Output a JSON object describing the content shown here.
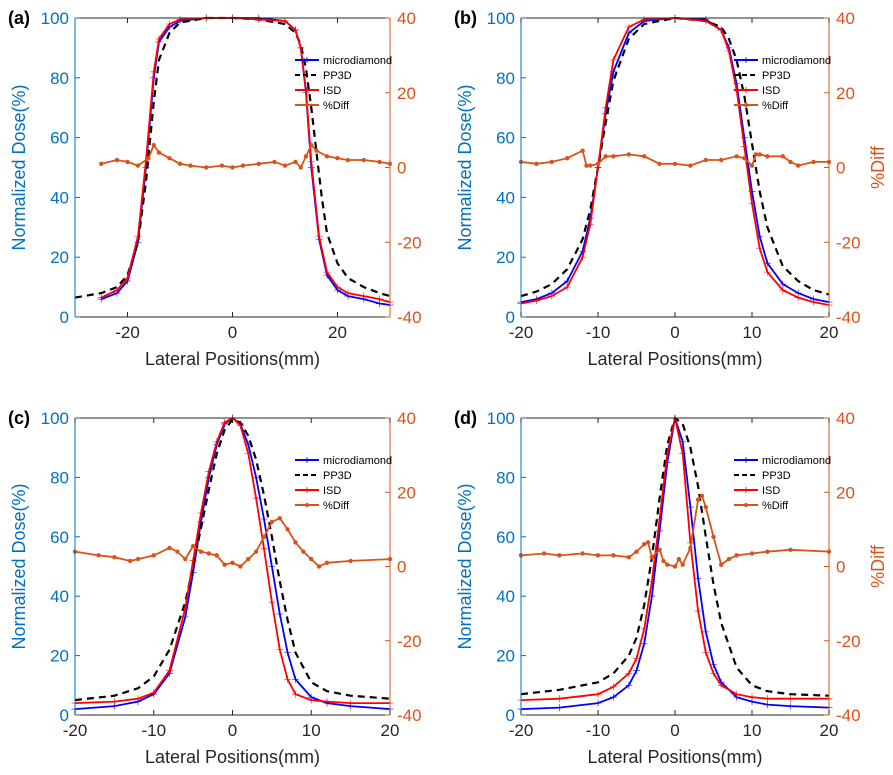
{
  "colors": {
    "left_axis": "#0072BD",
    "right_axis": "#D95319",
    "microdiamond": "#0000FF",
    "PP3D": "#000000",
    "ISD": "#FF0000",
    "diff": "#D95319"
  },
  "chart_data": [
    {
      "type": "line",
      "panel_label": "(a)",
      "xlabel": "Lateral Positions(mm)",
      "ylabel": "Normalized Dose(%)",
      "y2label": "",
      "xlim": [
        -30,
        30
      ],
      "xticks": [
        -20,
        0,
        20
      ],
      "ylim": [
        0,
        100
      ],
      "yticks": [
        0,
        20,
        40,
        60,
        80,
        100
      ],
      "y2lim": [
        -40,
        40
      ],
      "y2ticks": [
        -40,
        -20,
        0,
        20,
        40
      ],
      "legend": {
        "position": "top-right",
        "labels": [
          "microdiamond",
          "PP3D",
          "ISD",
          "%Diff"
        ]
      },
      "series": [
        {
          "name": "microdiamond",
          "axis": "left",
          "style": "solid-marker",
          "x": [
            -25,
            -22,
            -20,
            -18,
            -16.5,
            -15,
            -14,
            -12,
            -10,
            -5,
            0,
            5,
            10,
            12,
            13,
            14,
            15,
            16.5,
            18,
            20,
            22,
            25,
            28,
            30
          ],
          "y": [
            6,
            8,
            12,
            25,
            50,
            80,
            92,
            97,
            99,
            100,
            100,
            100,
            99,
            96,
            90,
            75,
            50,
            26,
            14,
            9,
            7,
            6,
            4.5,
            4
          ]
        },
        {
          "name": "PP3D",
          "axis": "left",
          "style": "dashed",
          "x": [
            -30,
            -25,
            -22,
            -20,
            -18,
            -16.5,
            -15,
            -14,
            -12,
            -10,
            -5,
            0,
            5,
            10,
            12,
            13,
            14,
            15,
            16,
            17,
            18,
            20,
            22,
            25,
            28,
            30
          ],
          "y": [
            6.5,
            8,
            10,
            14,
            25,
            45,
            72,
            86,
            95,
            98.5,
            100,
            100,
            99.5,
            98,
            95,
            91,
            83,
            70,
            55,
            40,
            28,
            18,
            13,
            10,
            8,
            7
          ]
        },
        {
          "name": "ISD",
          "axis": "left",
          "style": "solid-marker",
          "x": [
            -25,
            -22,
            -20,
            -18,
            -16.5,
            -15,
            -14,
            -12,
            -10,
            -5,
            0,
            5,
            10,
            12,
            13,
            14,
            15,
            16.5,
            18,
            20,
            22,
            25,
            28,
            30
          ],
          "y": [
            6.5,
            9,
            13,
            27,
            52,
            82,
            93,
            98,
            99.5,
            100,
            100,
            99.5,
            99,
            96,
            90,
            76,
            52,
            27,
            15,
            10,
            8,
            7,
            6,
            5
          ]
        },
        {
          "name": "%Diff",
          "axis": "right",
          "style": "dot-line",
          "x": [
            -25,
            -22,
            -20,
            -18,
            -16,
            -15,
            -14,
            -12,
            -10,
            -8,
            -5,
            -2,
            0,
            2,
            5,
            8,
            10,
            12,
            13,
            14,
            15,
            16,
            18,
            20,
            22,
            25,
            28,
            30
          ],
          "y": [
            1,
            2,
            1.5,
            0.5,
            2.5,
            6,
            4,
            2.5,
            1,
            0.5,
            0,
            0.5,
            0,
            0.5,
            1,
            1.5,
            0.5,
            1.5,
            0,
            3,
            6,
            4.5,
            3,
            2.5,
            2,
            2,
            1.5,
            1
          ]
        }
      ]
    },
    {
      "type": "line",
      "panel_label": "(b)",
      "xlabel": "Lateral Positions(mm)",
      "ylabel": "Normalized Dose(%)",
      "y2label": "%Diff",
      "xlim": [
        -20,
        20
      ],
      "xticks": [
        -20,
        -10,
        0,
        10,
        20
      ],
      "ylim": [
        0,
        100
      ],
      "yticks": [
        0,
        20,
        40,
        60,
        80,
        100
      ],
      "y2lim": [
        -40,
        40
      ],
      "y2ticks": [
        -40,
        -20,
        0,
        20,
        40
      ],
      "legend": {
        "position": "top-right",
        "labels": [
          "microdiamond",
          "PP3D",
          "ISD",
          "%Diff"
        ]
      },
      "series": [
        {
          "name": "microdiamond",
          "axis": "left",
          "style": "solid-marker",
          "x": [
            -20,
            -18,
            -16,
            -14,
            -12,
            -11,
            -10,
            -9,
            -8,
            -6,
            -4,
            0,
            4,
            6,
            7,
            8,
            9,
            10,
            11,
            12,
            14,
            16,
            18,
            20
          ],
          "y": [
            5,
            6,
            8,
            12,
            22,
            33,
            50,
            68,
            82,
            95,
            99,
            100,
            99.5,
            96,
            90,
            78,
            60,
            42,
            27,
            18,
            11,
            8,
            6,
            5
          ]
        },
        {
          "name": "PP3D",
          "axis": "left",
          "style": "dashed",
          "x": [
            -20,
            -18,
            -16,
            -14,
            -12,
            -11,
            -10,
            -9,
            -8,
            -6,
            -4,
            0,
            4,
            6,
            7,
            8,
            9,
            10,
            11,
            12,
            14,
            16,
            18,
            20
          ],
          "y": [
            7,
            8.5,
            11,
            16,
            26,
            36,
            50,
            65,
            79,
            93,
            98,
            100,
            99,
            97,
            93,
            86,
            74,
            58,
            42,
            30,
            17,
            12,
            9,
            7.5
          ]
        },
        {
          "name": "ISD",
          "axis": "left",
          "style": "solid-marker",
          "x": [
            -20,
            -18,
            -16,
            -14,
            -12,
            -11,
            -10,
            -9,
            -8,
            -6,
            -4,
            0,
            4,
            6,
            7,
            8,
            9,
            10,
            11,
            12,
            14,
            16,
            18,
            20
          ],
          "y": [
            4.5,
            5.5,
            7,
            10,
            20,
            31,
            50,
            70,
            86,
            97,
            99.5,
            100,
            99,
            96,
            89,
            76,
            57,
            38,
            23,
            15,
            9,
            6.5,
            5,
            4
          ]
        },
        {
          "name": "%Diff",
          "axis": "right",
          "style": "dot-line",
          "x": [
            -20,
            -18,
            -16,
            -14,
            -12,
            -11.5,
            -11,
            -10,
            -9,
            -8,
            -6,
            -4,
            -2,
            0,
            2,
            4,
            6,
            8,
            9,
            10,
            10.5,
            11,
            12,
            14,
            15,
            16,
            18,
            20
          ],
          "y": [
            1.5,
            1,
            1.5,
            2.5,
            4.5,
            0.5,
            0.5,
            1,
            3,
            3,
            3.5,
            3,
            1,
            1,
            0.5,
            2,
            2,
            3,
            2.5,
            0.5,
            3.5,
            3.5,
            3,
            3,
            1.5,
            0.5,
            1.5,
            1.5
          ]
        }
      ]
    },
    {
      "type": "line",
      "panel_label": "(c)",
      "xlabel": "Lateral Positions(mm)",
      "ylabel": "Normalized Dose(%)",
      "y2label": "",
      "xlim": [
        -20,
        20
      ],
      "xticks": [
        -20,
        -10,
        0,
        10,
        20
      ],
      "ylim": [
        0,
        100
      ],
      "yticks": [
        0,
        20,
        40,
        60,
        80,
        100
      ],
      "y2lim": [
        -40,
        40
      ],
      "y2ticks": [
        -40,
        -20,
        0,
        20,
        40
      ],
      "legend": {
        "position": "top-right",
        "labels": [
          "microdiamond",
          "PP3D",
          "ISD",
          "%Diff"
        ]
      },
      "series": [
        {
          "name": "microdiamond",
          "axis": "left",
          "style": "solid-marker",
          "x": [
            -20,
            -15,
            -12,
            -10,
            -8,
            -6,
            -5,
            -4,
            -3,
            -2,
            -1,
            0,
            1,
            2,
            3,
            4,
            5,
            6,
            7,
            8,
            10,
            12,
            15,
            20
          ],
          "y": [
            2,
            3,
            4.5,
            7,
            14,
            33,
            48,
            65,
            80,
            91,
            98,
            100,
            98,
            91,
            80,
            66,
            50,
            34,
            21,
            12,
            6,
            4,
            3,
            2
          ]
        },
        {
          "name": "PP3D",
          "axis": "left",
          "style": "dashed",
          "x": [
            -20,
            -15,
            -12,
            -10,
            -8,
            -6,
            -5,
            -4,
            -3,
            -2,
            -1,
            0,
            1,
            2,
            3,
            4,
            5,
            6,
            7,
            8,
            10,
            12,
            15,
            20
          ],
          "y": [
            5,
            6.5,
            9,
            13,
            22,
            38,
            50,
            63,
            76,
            88,
            96,
            99.5,
            98.5,
            94,
            86,
            74,
            60,
            45,
            32,
            21,
            11,
            8,
            6.5,
            5.5
          ]
        },
        {
          "name": "ISD",
          "axis": "left",
          "style": "solid-marker",
          "x": [
            -20,
            -15,
            -12,
            -10,
            -8,
            -6,
            -5,
            -4,
            -3,
            -2,
            -1,
            0,
            1,
            2,
            3,
            4,
            5,
            6,
            7,
            8,
            10,
            12,
            15,
            20
          ],
          "y": [
            4,
            4.5,
            5.5,
            7.5,
            15,
            36,
            52,
            68,
            82,
            92,
            98.5,
            100,
            97.5,
            88,
            73,
            56,
            38,
            22,
            12,
            7,
            5,
            4.5,
            4,
            4
          ]
        },
        {
          "name": "%Diff",
          "axis": "right",
          "style": "dot-line",
          "x": [
            -20,
            -17,
            -15,
            -13,
            -12,
            -10,
            -8,
            -7,
            -6,
            -5,
            -4,
            -3,
            -2,
            -1,
            0,
            1,
            2,
            3,
            4,
            5,
            6,
            7,
            8,
            9,
            10,
            11,
            12,
            15,
            20
          ],
          "y": [
            4,
            3,
            2.5,
            1.5,
            2,
            3,
            5,
            4,
            2,
            5.5,
            4,
            3.5,
            3,
            0.5,
            1,
            0,
            2,
            4,
            8,
            12,
            13,
            10,
            6.5,
            4,
            2,
            0,
            1,
            1.5,
            2
          ]
        }
      ]
    },
    {
      "type": "line",
      "panel_label": "(d)",
      "xlabel": "Lateral Positions(mm)",
      "ylabel": "Normalized Dose(%)",
      "y2label": "%Diff",
      "xlim": [
        -20,
        20
      ],
      "xticks": [
        -20,
        -10,
        0,
        10,
        20
      ],
      "ylim": [
        0,
        100
      ],
      "yticks": [
        0,
        20,
        40,
        60,
        80,
        100
      ],
      "y2lim": [
        -40,
        40
      ],
      "y2ticks": [
        -40,
        -20,
        0,
        20,
        40
      ],
      "legend": {
        "position": "top-right",
        "labels": [
          "microdiamond",
          "PP3D",
          "ISD",
          "%Diff"
        ]
      },
      "series": [
        {
          "name": "microdiamond",
          "axis": "left",
          "style": "solid-marker",
          "x": [
            -20,
            -15,
            -10,
            -8,
            -6,
            -5,
            -4,
            -3,
            -2,
            -1,
            0,
            1,
            2,
            3,
            4,
            5,
            6,
            8,
            10,
            12,
            15,
            20
          ],
          "y": [
            2,
            2.5,
            4,
            6,
            10,
            15,
            24,
            40,
            62,
            85,
            100,
            92,
            70,
            46,
            28,
            17,
            11,
            6,
            4.5,
            3.5,
            3,
            2.5
          ]
        },
        {
          "name": "PP3D",
          "axis": "left",
          "style": "dashed",
          "x": [
            -20,
            -15,
            -10,
            -8,
            -6,
            -5,
            -4,
            -3,
            -2,
            -1,
            0,
            1,
            2,
            3,
            4,
            5,
            6,
            8,
            10,
            12,
            15,
            20
          ],
          "y": [
            7,
            8.5,
            11,
            14,
            20,
            26,
            37,
            53,
            73,
            91,
            100,
            98,
            90,
            77,
            60,
            44,
            31,
            16,
            10,
            8,
            7,
            6.5
          ]
        },
        {
          "name": "ISD",
          "axis": "left",
          "style": "solid-marker",
          "x": [
            -20,
            -15,
            -10,
            -8,
            -6,
            -5,
            -4,
            -3,
            -2,
            -1,
            0,
            1,
            2,
            3,
            4,
            5,
            6,
            8,
            10,
            12,
            15,
            20
          ],
          "y": [
            5,
            5.5,
            7,
            9.5,
            14,
            19,
            29,
            45,
            66,
            88,
            100,
            88,
            58,
            35,
            21,
            14,
            10,
            7,
            6,
            5.5,
            5.5,
            5.5
          ]
        },
        {
          "name": "%Diff",
          "axis": "right",
          "style": "dot-line",
          "x": [
            -20,
            -17,
            -15,
            -12,
            -10,
            -8,
            -6,
            -5,
            -4,
            -3.5,
            -3,
            -2,
            -1.5,
            -1,
            0,
            0.5,
            1,
            2,
            3,
            3.5,
            4,
            5,
            6,
            7,
            8,
            10,
            12,
            15,
            20
          ],
          "y": [
            3,
            3.5,
            3,
            3.5,
            3,
            3,
            2.5,
            4,
            6,
            6.5,
            2.5,
            4.5,
            1.5,
            0.5,
            0,
            2,
            0.5,
            5,
            18,
            19,
            16,
            8,
            0.5,
            2,
            3,
            3.5,
            4,
            4.5,
            4
          ]
        }
      ]
    }
  ]
}
